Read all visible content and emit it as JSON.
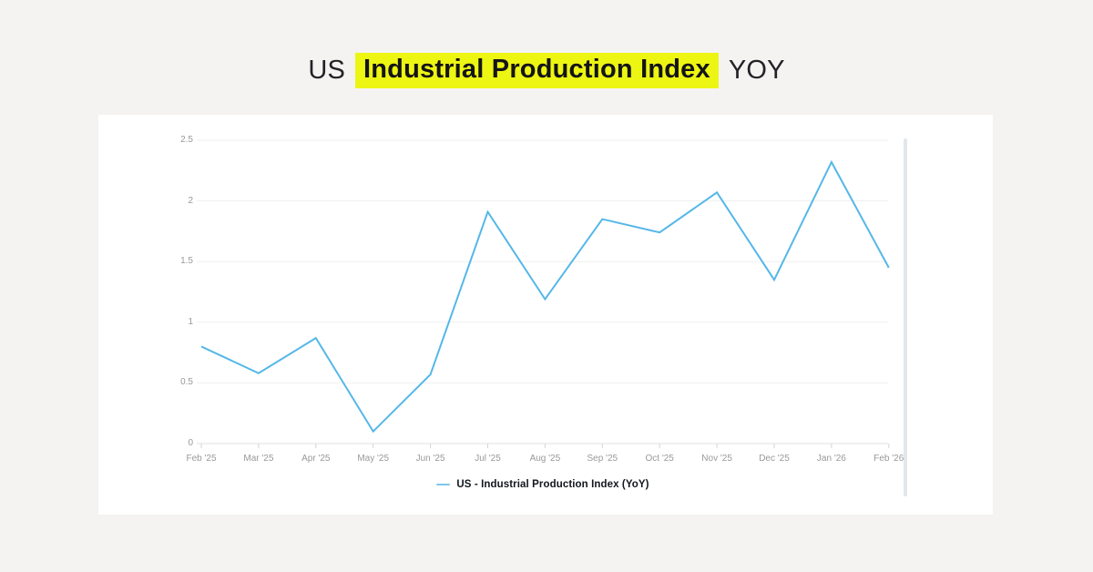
{
  "header": {
    "title_prefix": "US",
    "title_highlight": "Industrial Production Index",
    "title_suffix": "YOY",
    "highlight_color": "#edf513"
  },
  "chart_data": {
    "type": "line",
    "title": "US Industrial Production Index YOY",
    "categories": [
      "Feb '25",
      "Mar '25",
      "Apr '25",
      "May '25",
      "Jun '25",
      "Jul '25",
      "Aug '25",
      "Sep '25",
      "Oct '25",
      "Nov '25",
      "Dec '25",
      "Jan '26",
      "Feb '26"
    ],
    "series": [
      {
        "name": "US - Industrial Production Index (YoY)",
        "color": "#55b7e8",
        "values": [
          0.8,
          0.58,
          0.87,
          0.1,
          0.57,
          1.91,
          1.19,
          1.85,
          1.74,
          2.07,
          1.35,
          2.32,
          1.45
        ]
      }
    ],
    "xlabel": "",
    "ylabel": "",
    "ylim": [
      0,
      2.5
    ],
    "y_ticks": [
      0,
      0.5,
      1,
      1.5,
      2,
      2.5
    ],
    "y_tick_labels": [
      "0",
      "0.5",
      "1",
      "1.5",
      "2",
      "2.5"
    ],
    "grid": true,
    "legend_position": "bottom"
  },
  "legend": {
    "label": "US - Industrial Production Index (YoY)",
    "marker_color": "#7fc6ea"
  },
  "colors": {
    "page_background": "#f4f3f1",
    "card_background": "#ffffff",
    "gridline": "#efefef",
    "axis_line": "#e2e2e2",
    "tick_mark": "#d6d6d6",
    "axis_text": "#97999c",
    "title_text": "#222227"
  }
}
